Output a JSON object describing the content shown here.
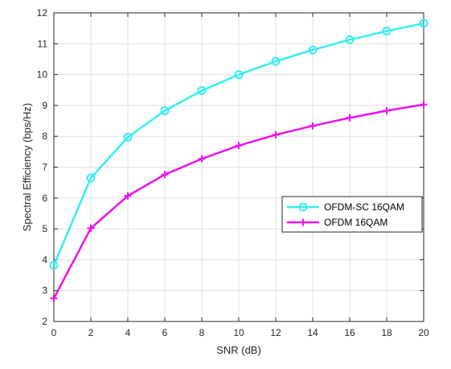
{
  "chart_data": {
    "type": "line",
    "title": "",
    "xlabel": "SNR (dB)",
    "ylabel": "Spectral Efficiency (bps/Hz)",
    "xlim": [
      0,
      20
    ],
    "ylim": [
      2,
      12
    ],
    "xticks": [
      0,
      2,
      4,
      6,
      8,
      10,
      12,
      14,
      16,
      18,
      20
    ],
    "yticks": [
      2,
      3,
      4,
      5,
      6,
      7,
      8,
      9,
      10,
      11,
      12
    ],
    "grid": true,
    "legend_position": "right",
    "x": [
      0,
      2,
      4,
      6,
      8,
      10,
      12,
      14,
      16,
      18,
      20
    ],
    "series": [
      {
        "name": "OFDM-SC 16QAM",
        "values": [
          3.82,
          6.65,
          7.97,
          8.83,
          9.48,
          10.0,
          10.43,
          10.8,
          11.13,
          11.41,
          11.66
        ],
        "color": "#33f0ee",
        "marker": "circle"
      },
      {
        "name": "OFDM 16QAM",
        "values": [
          2.75,
          5.02,
          6.07,
          6.76,
          7.27,
          7.7,
          8.05,
          8.34,
          8.6,
          8.83,
          9.03
        ],
        "color": "#ee10ee",
        "marker": "plus"
      }
    ]
  }
}
